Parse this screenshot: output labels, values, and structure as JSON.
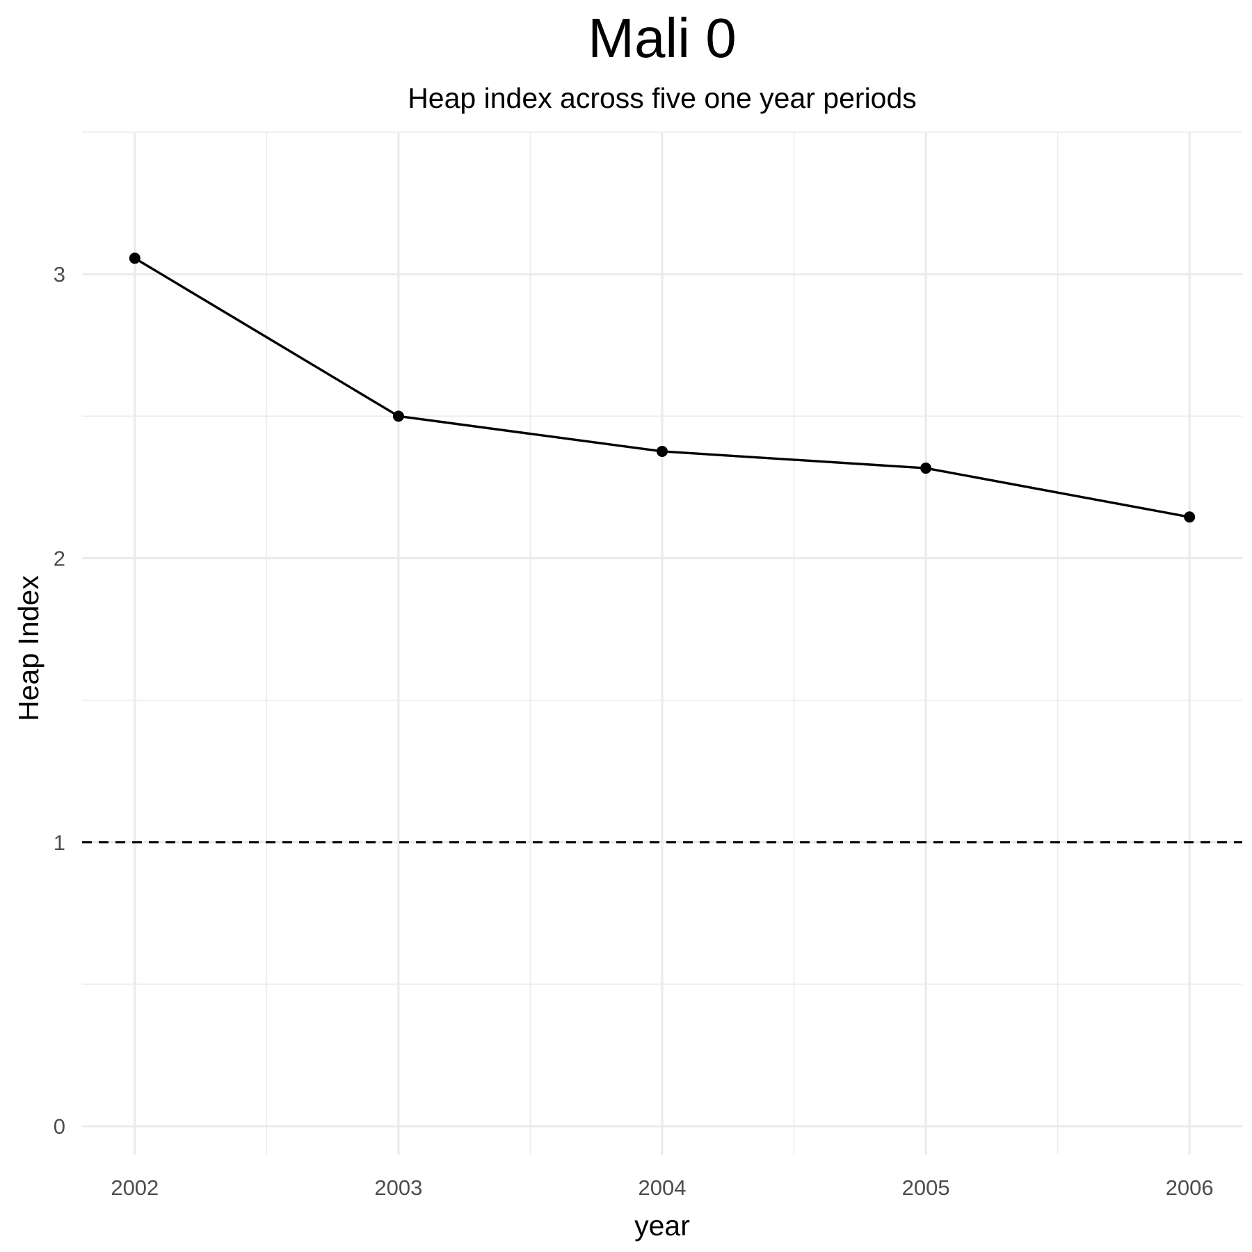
{
  "chart_data": {
    "type": "line",
    "title": "Mali 0",
    "subtitle": "Heap index across five one year periods",
    "xlabel": "year",
    "ylabel": "Heap Index",
    "x": [
      2002,
      2003,
      2004,
      2005,
      2006
    ],
    "y": [
      3.056,
      2.5,
      2.376,
      2.317,
      2.145
    ],
    "x_ticks": [
      "2002",
      "2003",
      "2004",
      "2005",
      "2006"
    ],
    "y_ticks": [
      "0",
      "1",
      "2",
      "3"
    ],
    "xlim": [
      2001.8,
      2006.2
    ],
    "ylim": [
      -0.1,
      3.5
    ],
    "reference_line": {
      "y": 1,
      "style": "dashed"
    },
    "grid": true,
    "line_color": "#000000",
    "grid_color": "#ebebeb"
  }
}
